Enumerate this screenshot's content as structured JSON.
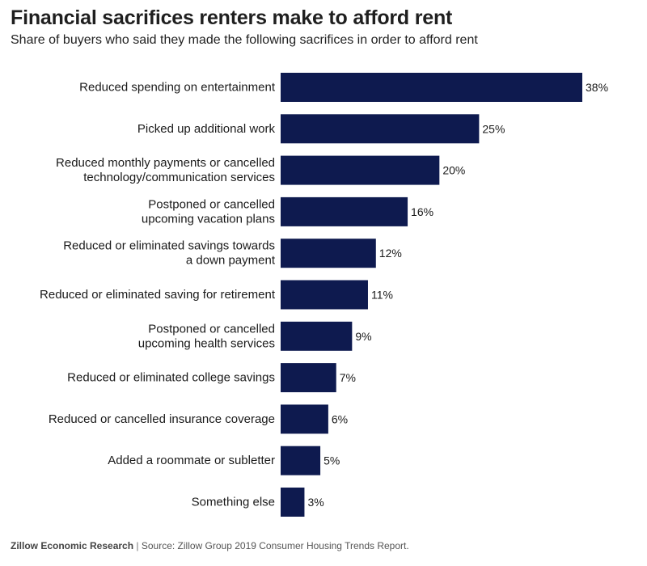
{
  "header": {
    "title": "Financial sacrifices renters make to afford rent",
    "subtitle": "Share of buyers who said they made the following sacrifices in order to afford rent"
  },
  "footer": {
    "org": "Zillow Economic Research",
    "separator": "|",
    "source": "Source: Zillow Group 2019 Consumer Housing Trends Report."
  },
  "colors": {
    "bar": "#0e1a4f",
    "text": "#1a1a1a"
  },
  "chart_data": {
    "type": "bar",
    "orientation": "horizontal",
    "title": "Financial sacrifices renters make to afford rent",
    "subtitle": "Share of buyers who said they made the following sacrifices in order to afford rent",
    "unit": "%",
    "categories": [
      [
        "Reduced spending on entertainment"
      ],
      [
        "Picked up additional work"
      ],
      [
        "Reduced monthly payments or cancelled",
        "technology/communication services"
      ],
      [
        "Postponed or cancelled",
        "upcoming vacation plans"
      ],
      [
        "Reduced or eliminated savings towards",
        "a down payment"
      ],
      [
        "Reduced or eliminated saving for retirement"
      ],
      [
        "Postponed or cancelled",
        "upcoming health services"
      ],
      [
        "Reduced or eliminated college savings"
      ],
      [
        "Reduced or cancelled insurance coverage"
      ],
      [
        "Added a roommate or subletter"
      ],
      [
        "Something else"
      ]
    ],
    "values": [
      38,
      25,
      20,
      16,
      12,
      11,
      9,
      7,
      6,
      5,
      3
    ],
    "data_labels": [
      "38%",
      "25%",
      "20%",
      "16%",
      "12%",
      "11%",
      "9%",
      "7%",
      "6%",
      "5%",
      "3%"
    ],
    "xlim": [
      0,
      38
    ],
    "grid": false,
    "legend": "none"
  }
}
